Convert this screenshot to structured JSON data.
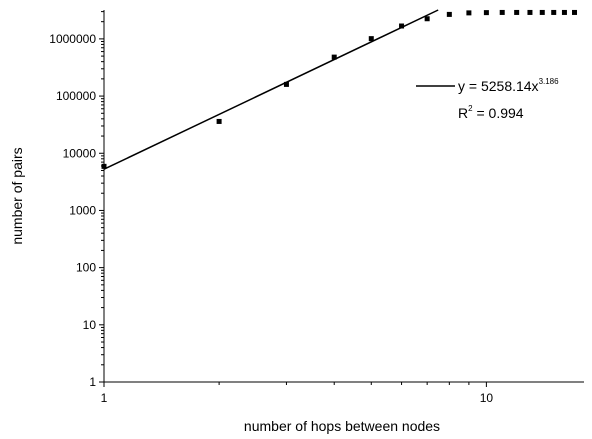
{
  "chart_data": {
    "type": "scatter",
    "xlabel": "number of hops between nodes",
    "ylabel": "number of pairs",
    "x_scale": "log",
    "y_scale": "log",
    "xlim": [
      1,
      18
    ],
    "ylim": [
      1,
      3200000
    ],
    "x_ticks": [
      {
        "value": 1,
        "label": "1"
      },
      {
        "value": 10,
        "label": "10"
      }
    ],
    "y_ticks": [
      {
        "value": 1,
        "label": "1"
      },
      {
        "value": 10,
        "label": "10"
      },
      {
        "value": 100,
        "label": "100"
      },
      {
        "value": 1000,
        "label": "1000"
      },
      {
        "value": 10000,
        "label": "10000"
      },
      {
        "value": 100000,
        "label": "100000"
      },
      {
        "value": 1000000,
        "label": "1000000"
      }
    ],
    "grid": false,
    "series": [
      {
        "kind": "points",
        "marker": "square",
        "color": "#000000",
        "x": [
          1,
          2,
          3,
          4,
          5,
          6,
          7,
          8,
          9,
          10,
          11,
          12,
          13,
          14,
          15,
          16,
          17
        ],
        "y": [
          5900,
          36000,
          160000,
          480000,
          1010000,
          1680000,
          2250000,
          2680000,
          2850000,
          2880000,
          2900000,
          2900000,
          2900000,
          2900000,
          2900000,
          2900000,
          2900000
        ]
      },
      {
        "kind": "fit",
        "color": "#000000",
        "coefficient": 5258.14,
        "exponent": 3.186
      }
    ],
    "legend": {
      "placement": "right",
      "fit_prefix": "y = 5258.14x",
      "fit_exponent": "3.186",
      "r2_prefix": "R",
      "r2_sup": "2",
      "r2_value": " = 0.994"
    }
  }
}
